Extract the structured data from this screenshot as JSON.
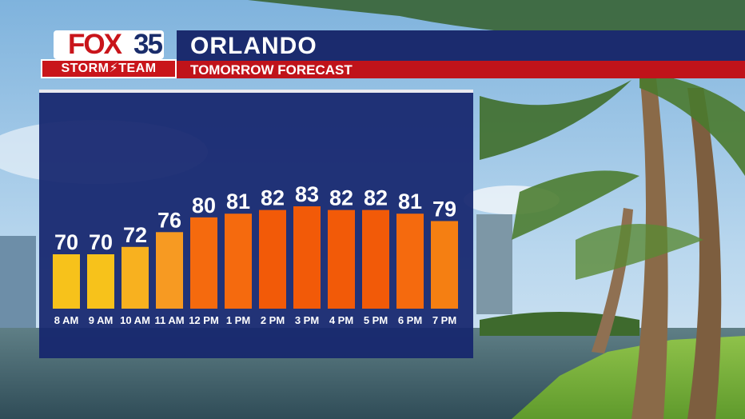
{
  "header": {
    "logo_text": "FOX",
    "logo_number": "35",
    "logo_band": "STORM⚡TEAM",
    "title": "ORLANDO",
    "subtitle": "TOMORROW FORECAST"
  },
  "colors": {
    "band_blue": "#1b2b6e",
    "band_red": "#c0131a",
    "panel": "#16266e",
    "bar_yellow": "#f7c21b",
    "bar_orange_light": "#f79a22",
    "bar_orange": "#f56a0e",
    "bar_orange_dark": "#f25a08"
  },
  "chart_data": {
    "type": "bar",
    "categories": [
      "8 AM",
      "9 AM",
      "10 AM",
      "11 AM",
      "12 PM",
      "1 PM",
      "2 PM",
      "3 PM",
      "4 PM",
      "5 PM",
      "6 PM",
      "7 PM"
    ],
    "values": [
      70,
      70,
      72,
      76,
      80,
      81,
      82,
      83,
      82,
      82,
      81,
      79
    ],
    "bar_colors": [
      "#f7c21b",
      "#f7c21b",
      "#f8b11f",
      "#f79a22",
      "#f56a0e",
      "#f56a0e",
      "#f25a08",
      "#f25a08",
      "#f25a08",
      "#f25a08",
      "#f56a0e",
      "#f57f12"
    ],
    "title": "",
    "xlabel": "",
    "ylabel": "",
    "grid": false
  }
}
